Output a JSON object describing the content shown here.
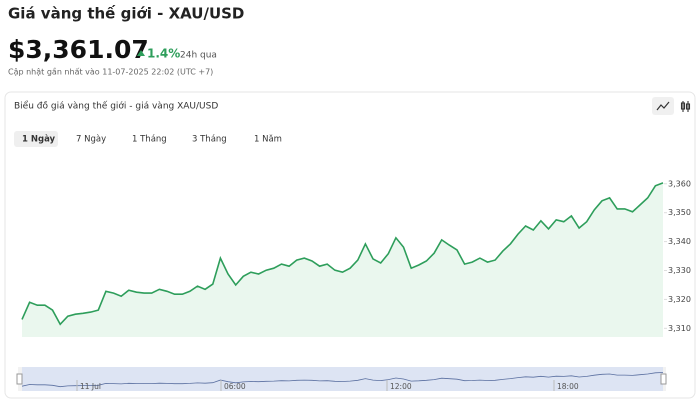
{
  "header": {
    "title": "Giá vàng thế giới - XAU/USD",
    "price": "$3,361.07",
    "change": "1.4%",
    "period": "24h qua",
    "updated": "Cập nhật gần nhất vào 11-07-2025 22:02 (UTC +7)"
  },
  "card": {
    "title": "Biểu đồ giá vàng thế giới - giá vàng XAU/USD",
    "tabs": [
      "1 Ngày",
      "7 Ngày",
      "1 Tháng",
      "3 Tháng",
      "1 Năm"
    ]
  },
  "navigator": {
    "labels": [
      "11 Jul",
      "06:00",
      "12:00",
      "18:00"
    ]
  },
  "chart_data": {
    "type": "line",
    "color": "#2e9e5b",
    "fill": "#eaf7ee",
    "ylim": [
      3307,
      3362
    ],
    "yticks": [
      {
        "value": 3310,
        "label": "3,310"
      },
      {
        "value": 3320,
        "label": "3,320"
      },
      {
        "value": 3330,
        "label": "3,330"
      },
      {
        "value": 3340,
        "label": "3,340"
      },
      {
        "value": 3350,
        "label": "3,350"
      },
      {
        "value": 3360,
        "label": "3,360"
      }
    ],
    "values": [
      3313.1,
      3319.0,
      3318.0,
      3318.0,
      3316.3,
      3311.4,
      3314.2,
      3314.9,
      3315.2,
      3315.6,
      3316.3,
      3322.8,
      3322.2,
      3321.1,
      3323.2,
      3322.5,
      3322.2,
      3322.2,
      3323.5,
      3322.8,
      3321.8,
      3321.8,
      3322.8,
      3324.6,
      3323.5,
      3325.3,
      3334.3,
      3328.8,
      3325.0,
      3328.0,
      3329.4,
      3328.8,
      3330.1,
      3330.8,
      3332.2,
      3331.5,
      3333.6,
      3334.3,
      3333.3,
      3331.5,
      3332.2,
      3330.1,
      3329.4,
      3330.8,
      3333.6,
      3339.2,
      3334.0,
      3332.6,
      3335.8,
      3341.3,
      3338.1,
      3330.8,
      3331.9,
      3333.3,
      3336.0,
      3340.6,
      3338.8,
      3337.1,
      3332.2,
      3332.9,
      3334.3,
      3332.9,
      3333.6,
      3336.7,
      3339.2,
      3342.6,
      3345.4,
      3344.0,
      3347.2,
      3344.4,
      3347.5,
      3346.9,
      3348.9,
      3344.7,
      3346.9,
      3351.0,
      3354.1,
      3355.1,
      3351.3,
      3351.3,
      3350.3,
      3352.7,
      3355.1,
      3359.3,
      3360.3
    ]
  }
}
